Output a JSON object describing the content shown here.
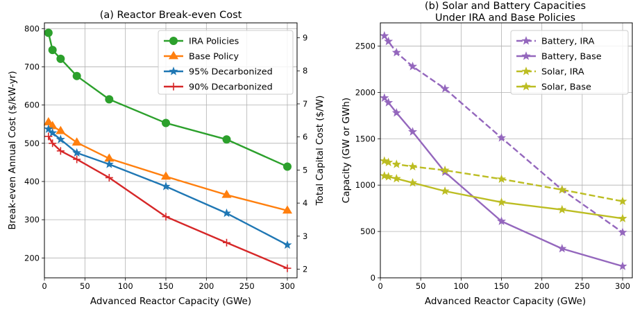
{
  "chart_data": [
    {
      "type": "line",
      "title": "(a) Reactor Break-even Cost",
      "xlabel": "Advanced Reactor Capacity (GWe)",
      "ylabel": "Break-even Annual Cost ($/kW-yr)",
      "y2label": "Total Capital Cost ($/W)",
      "xlim": [
        0,
        312
      ],
      "ylim": [
        148,
        815
      ],
      "y2lim": [
        1.74,
        9.45
      ],
      "xticks": [
        0,
        50,
        100,
        150,
        200,
        250,
        300
      ],
      "yticks": [
        200,
        300,
        400,
        500,
        600,
        700,
        800
      ],
      "y2ticks": [
        2,
        3,
        4,
        5,
        6,
        7,
        8,
        9
      ],
      "grid": true,
      "legend_position": "top-right",
      "x": [
        5,
        10,
        20,
        40,
        80,
        150,
        225,
        300
      ],
      "series": [
        {
          "name": "IRA Policies",
          "color": "#2ca02c",
          "marker": "circle",
          "values": [
            789,
            744,
            721,
            676,
            615,
            553,
            510,
            439
          ]
        },
        {
          "name": "Base Policy",
          "color": "#ff7f0e",
          "marker": "triangle",
          "values": [
            555,
            545,
            532,
            502,
            460,
            413,
            365,
            324
          ]
        },
        {
          "name": "95% Decarbonized",
          "color": "#1f77b4",
          "marker": "star",
          "values": [
            537,
            527,
            510,
            475,
            445,
            387,
            317,
            234
          ]
        },
        {
          "name": "90% Decarbonized",
          "color": "#d62728",
          "marker": "plus",
          "values": [
            518,
            500,
            480,
            458,
            410,
            308,
            240,
            173
          ]
        }
      ]
    },
    {
      "type": "line",
      "title": "(b) Solar and Battery Capacities",
      "title_line2": "Under IRA and Base Policies",
      "xlabel": "Advanced Reactor Capacity (GWe)",
      "ylabel": "Capacity (GW or GWh)",
      "xlim": [
        0,
        312
      ],
      "ylim": [
        0,
        2750
      ],
      "xticks": [
        0,
        50,
        100,
        150,
        200,
        250,
        300
      ],
      "yticks": [
        0,
        500,
        1000,
        1500,
        2000,
        2500
      ],
      "grid": true,
      "legend_position": "top-right",
      "x": [
        5,
        10,
        20,
        40,
        80,
        150,
        225,
        300
      ],
      "series": [
        {
          "name": "Battery, IRA",
          "color": "#9467bd",
          "dash": "dashed",
          "marker": "star",
          "values": [
            2610,
            2550,
            2430,
            2280,
            2040,
            1510,
            950,
            490
          ]
        },
        {
          "name": "Battery, Base",
          "color": "#9467bd",
          "dash": "solid",
          "marker": "star",
          "values": [
            1940,
            1890,
            1780,
            1575,
            1140,
            610,
            315,
            125
          ]
        },
        {
          "name": "Solar, IRA",
          "color": "#bcbd22",
          "dash": "dashed",
          "marker": "star",
          "values": [
            1260,
            1245,
            1225,
            1200,
            1160,
            1065,
            950,
            825
          ]
        },
        {
          "name": "Solar, Base",
          "color": "#bcbd22",
          "dash": "solid",
          "marker": "star",
          "values": [
            1100,
            1090,
            1070,
            1025,
            935,
            815,
            735,
            640
          ]
        }
      ]
    }
  ]
}
